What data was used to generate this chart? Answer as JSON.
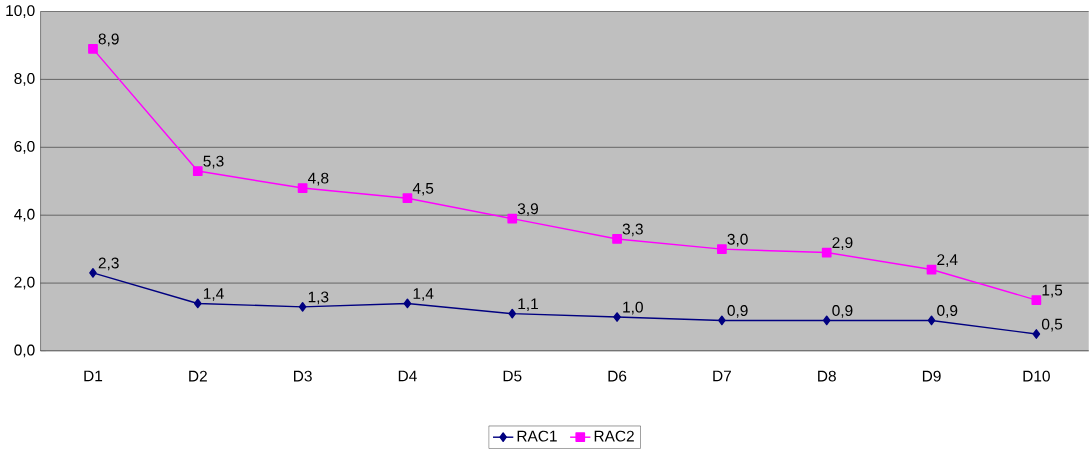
{
  "chart_data": {
    "type": "line",
    "categories": [
      "D1",
      "D2",
      "D3",
      "D4",
      "D5",
      "D6",
      "D7",
      "D8",
      "D9",
      "D10"
    ],
    "series": [
      {
        "name": "RAC1",
        "color": "#000080",
        "marker": "diamond",
        "values": [
          2.3,
          1.4,
          1.3,
          1.4,
          1.1,
          1.0,
          0.9,
          0.9,
          0.9,
          0.5
        ],
        "value_labels": [
          "2,3",
          "1,4",
          "1,3",
          "1,4",
          "1,1",
          "1,0",
          "0,9",
          "0,9",
          "0,9",
          "0,5"
        ]
      },
      {
        "name": "RAC2",
        "color": "#ff00ff",
        "marker": "square",
        "values": [
          8.9,
          5.3,
          4.8,
          4.5,
          3.9,
          3.3,
          3.0,
          2.9,
          2.4,
          1.5
        ],
        "value_labels": [
          "8,9",
          "5,3",
          "4,8",
          "4,5",
          "3,9",
          "3,3",
          "3,0",
          "2,9",
          "2,4",
          "1,5"
        ]
      }
    ],
    "ylim": [
      0,
      10
    ],
    "yticks": [
      {
        "value": 0,
        "label": "0,0"
      },
      {
        "value": 2,
        "label": "2,0"
      },
      {
        "value": 4,
        "label": "4,0"
      },
      {
        "value": 6,
        "label": "6,0"
      },
      {
        "value": 8,
        "label": "8,0"
      },
      {
        "value": 10,
        "label": "10,0"
      }
    ],
    "grid": "y",
    "legend": "bottom",
    "line_style": "solid"
  }
}
